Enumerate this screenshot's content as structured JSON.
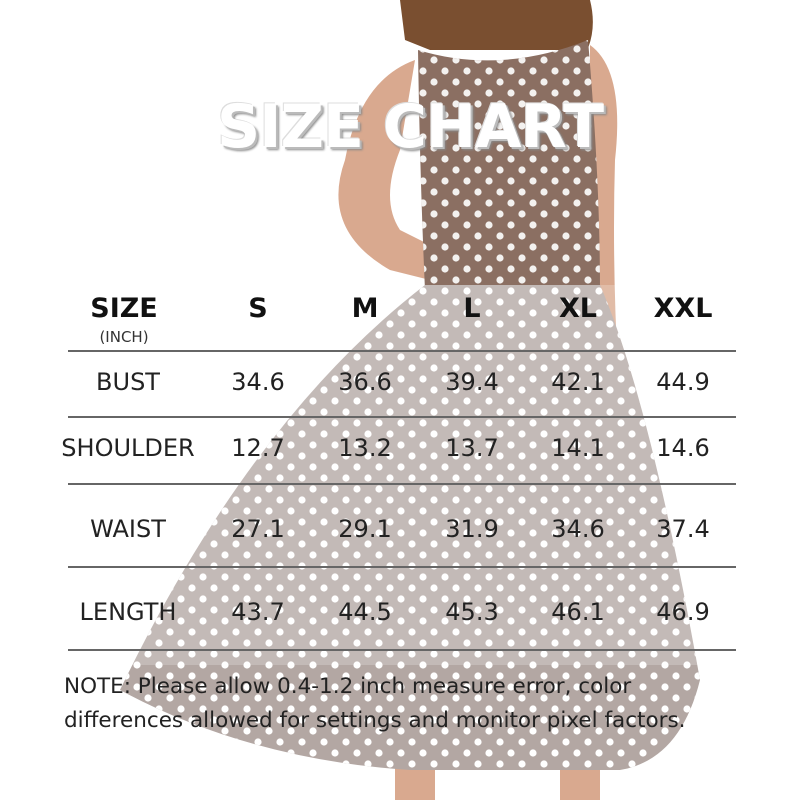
{
  "title": "SIZE CHART",
  "table": {
    "header_label": "SIZE",
    "unit": "(INCH)",
    "sizes": [
      "S",
      "M",
      "L",
      "XL",
      "XXL"
    ],
    "rows": [
      {
        "label": "BUST",
        "values": [
          "34.6",
          "36.6",
          "39.4",
          "42.1",
          "44.9"
        ]
      },
      {
        "label": "SHOULDER",
        "values": [
          "12.7",
          "13.2",
          "13.7",
          "14.1",
          "14.6"
        ]
      },
      {
        "label": "WAIST",
        "values": [
          "27.1",
          "29.1",
          "31.9",
          "34.6",
          "37.4"
        ]
      },
      {
        "label": "LENGTH",
        "values": [
          "43.7",
          "44.5",
          "45.3",
          "46.1",
          "46.9"
        ]
      }
    ]
  },
  "note": {
    "line1": "NOTE: Please allow 0.4-1.2 inch measure error, color",
    "line2": "differences allowed for settings and monitor pixel factors."
  },
  "colors": {
    "bodice": "#8b6f62",
    "skirt": "#b3a7a3",
    "dots": "#ffffff",
    "skin": "#d9a98f",
    "hair": "#7a4f30"
  }
}
